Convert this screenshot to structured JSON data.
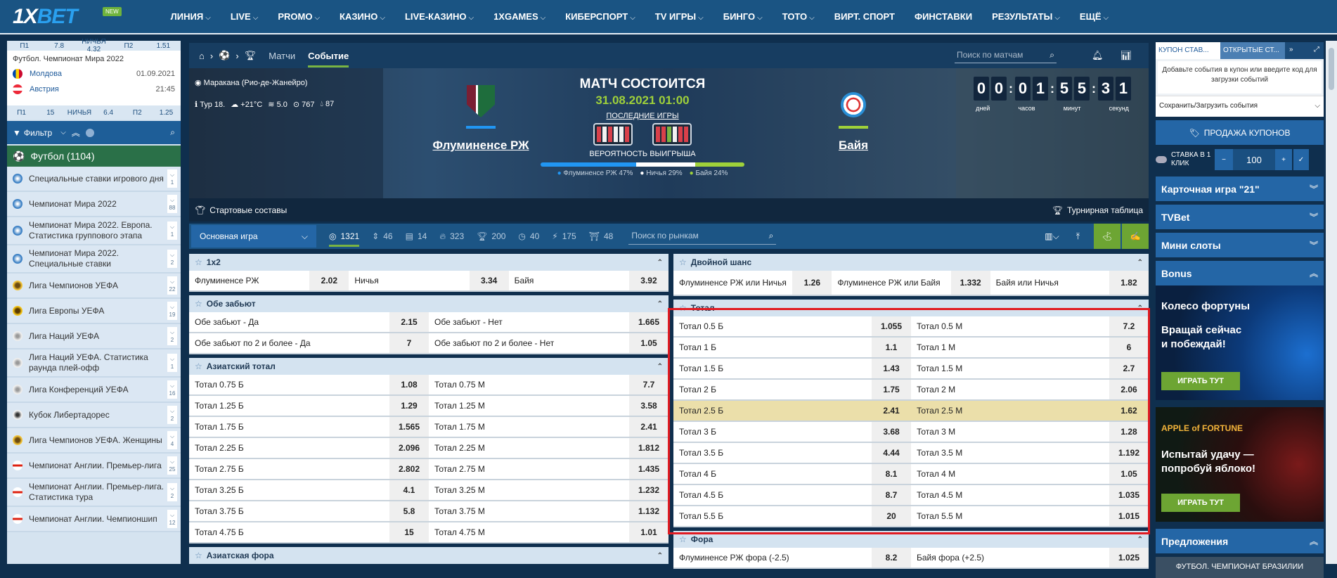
{
  "nav": {
    "logo": "1XBET",
    "new_badge": "NEW",
    "items": [
      {
        "label": "ЛИНИЯ",
        "dd": true
      },
      {
        "label": "LIVE",
        "dd": true
      },
      {
        "label": "PROMO",
        "dd": true
      },
      {
        "label": "КАЗИНО",
        "dd": true
      },
      {
        "label": "LIVE-КАЗИНО",
        "dd": true
      },
      {
        "label": "1XGAMES",
        "dd": true
      },
      {
        "label": "КИБЕРСПОРТ",
        "dd": true
      },
      {
        "label": "TV ИГРЫ",
        "dd": true
      },
      {
        "label": "БИНГО",
        "dd": true
      },
      {
        "label": "ТОТО",
        "dd": true
      },
      {
        "label": "ВИРТ. СПОРТ",
        "dd": false
      },
      {
        "label": "ФИНСТАВКИ",
        "dd": false
      },
      {
        "label": "РЕЗУЛЬТАТЫ",
        "dd": true
      },
      {
        "label": "ЕЩЁ",
        "dd": true
      }
    ]
  },
  "sidebar": {
    "mini_top_odds": {
      "p1": "П1",
      "p1v": "7.8",
      "x": "НИЧЬЯ 4.32",
      "p2": "П2",
      "p2v": "1.51"
    },
    "mini_match": {
      "league": "Футбол. Чемпионат Мира 2022",
      "team1": "Молдова",
      "date": "01.09.2021",
      "team2": "Австрия",
      "time": "21:45"
    },
    "mini_bottom_odds": {
      "p1": "П1",
      "p1v": "15",
      "x": "НИЧЬЯ",
      "xv": "6.4",
      "p2": "П2",
      "p2v": "1.25"
    },
    "filter_label": "Фильтр",
    "sport": "Футбол (1104)",
    "leagues": [
      {
        "name": "Специальные ставки игрового дня",
        "count": "1",
        "icon": "globe"
      },
      {
        "name": "Чемпионат Мира 2022",
        "count": "88",
        "icon": "globe"
      },
      {
        "name": "Чемпионат Мира 2022. Европа. Статистика группового этапа",
        "count": "1",
        "icon": "globe"
      },
      {
        "name": "Чемпионат Мира 2022. Специальные ставки",
        "count": "2",
        "icon": "globe"
      },
      {
        "name": "Лига Чемпионов УЕФА",
        "count": "22",
        "icon": "ucl"
      },
      {
        "name": "Лига Европы УЕФА",
        "count": "19",
        "icon": "uel"
      },
      {
        "name": "Лига Наций УЕФА",
        "count": "2",
        "icon": "unl"
      },
      {
        "name": "Лига Наций УЕФА. Статистика раунда плей-офф",
        "count": "1",
        "icon": "unl"
      },
      {
        "name": "Лига Конференций УЕФА",
        "count": "16",
        "icon": "unl"
      },
      {
        "name": "Кубок Либертадорес",
        "count": "2",
        "icon": "lib"
      },
      {
        "name": "Лига Чемпионов УЕФА. Женщины",
        "count": "4",
        "icon": "ucl"
      },
      {
        "name": "Чемпионат Англии. Премьер-лига",
        "count": "25",
        "icon": "eng"
      },
      {
        "name": "Чемпионат Англии. Премьер-лига. Статистика тура",
        "count": "2",
        "icon": "eng"
      },
      {
        "name": "Чемпионат Англии. Чемпионшип",
        "count": "12",
        "icon": "eng"
      }
    ]
  },
  "crumbs": {
    "matches": "Матчи",
    "event": "Событие",
    "search_placeholder": "Поиск по матчам"
  },
  "hero": {
    "stadium": "Маракана (Рио-де-Жанейро)",
    "round": "Тур 18.",
    "temp": "+21°C",
    "wind": "5.0",
    "pressure": "767",
    "humidity": "87",
    "team1": "Флуминенсе РЖ",
    "team2": "Байя",
    "status": "МАТЧ СОСТОИТСЯ",
    "datetime": "31.08.2021 01:00",
    "last_games": "ПОСЛЕДНИЕ ИГРЫ",
    "form1": [
      "#d9404a",
      "#f2f2f2",
      "#d9404a",
      "#f2f2f2",
      "#f2f2f2",
      "#d9404a"
    ],
    "form2": [
      "#d9404a",
      "#d9404a",
      "#7ab442",
      "#f2f2f2",
      "#d9404a",
      "#d9404a"
    ],
    "prob_title": "ВЕРОЯТНОСТЬ ВЫИГРЫША",
    "prob": [
      {
        "label": "Флуминенсе РЖ 47%",
        "value": 47,
        "color": "#2196f3"
      },
      {
        "label": "Ничья 29%",
        "value": 29,
        "color": "#ffffff"
      },
      {
        "label": "Байя 24%",
        "value": 24,
        "color": "#9fd13a"
      }
    ],
    "countdown": {
      "digits": [
        "0",
        "0",
        "0",
        "1",
        "5",
        "5",
        "3",
        "1"
      ],
      "days": "дней",
      "hours": "часов",
      "minutes": "минут",
      "seconds": "секунд"
    },
    "lineups": "Стартовые составы",
    "standings": "Турнирная таблица"
  },
  "market_filter": {
    "select": "Основная игра",
    "counts": [
      "1321",
      "46",
      "14",
      "323",
      "200",
      "40",
      "175",
      "48"
    ],
    "search_placeholder": "Поиск по рынкам"
  },
  "markets_left": [
    {
      "title": "1x2",
      "rows": [
        [
          [
            "Флуминенсе РЖ",
            "2.02"
          ],
          [
            "Ничья",
            "3.34"
          ],
          [
            "Байя",
            "3.92"
          ]
        ]
      ]
    },
    {
      "title": "Обе забьют",
      "rows": [
        [
          [
            "Обе забьют - Да",
            "2.15"
          ],
          [
            "Обе забьют - Нет",
            "1.665"
          ]
        ],
        [
          [
            "Обе забьют по 2 и более - Да",
            "7"
          ],
          [
            "Обе забьют по 2 и более - Нет",
            "1.05"
          ]
        ]
      ]
    },
    {
      "title": "Азиатский тотал",
      "rows": [
        [
          [
            "Тотал 0.75 Б",
            "1.08"
          ],
          [
            "Тотал 0.75 М",
            "7.7"
          ]
        ],
        [
          [
            "Тотал 1.25 Б",
            "1.29"
          ],
          [
            "Тотал 1.25 М",
            "3.58"
          ]
        ],
        [
          [
            "Тотал 1.75 Б",
            "1.565"
          ],
          [
            "Тотал 1.75 М",
            "2.41"
          ]
        ],
        [
          [
            "Тотал 2.25 Б",
            "2.096"
          ],
          [
            "Тотал 2.25 М",
            "1.812"
          ]
        ],
        [
          [
            "Тотал 2.75 Б",
            "2.802"
          ],
          [
            "Тотал 2.75 М",
            "1.435"
          ]
        ],
        [
          [
            "Тотал 3.25 Б",
            "4.1"
          ],
          [
            "Тотал 3.25 М",
            "1.232"
          ]
        ],
        [
          [
            "Тотал 3.75 Б",
            "5.8"
          ],
          [
            "Тотал 3.75 М",
            "1.132"
          ]
        ],
        [
          [
            "Тотал 4.75 Б",
            "15"
          ],
          [
            "Тотал 4.75 М",
            "1.01"
          ]
        ]
      ]
    },
    {
      "title": "Азиатская фора",
      "rows": []
    }
  ],
  "markets_right": [
    {
      "title": "Двойной шанс",
      "tall": true,
      "rows": [
        [
          [
            "Флуминенсе РЖ или Ничья",
            "1.26"
          ],
          [
            "Флуминенсе РЖ или Байя",
            "1.332"
          ],
          [
            "Байя или Ничья",
            "1.82"
          ]
        ]
      ]
    },
    {
      "title": "Тотал",
      "rows": [
        [
          [
            "Тотал 0.5 Б",
            "1.055"
          ],
          [
            "Тотал 0.5 М",
            "7.2"
          ]
        ],
        [
          [
            "Тотал 1 Б",
            "1.1"
          ],
          [
            "Тотал 1 М",
            "6"
          ]
        ],
        [
          [
            "Тотал 1.5 Б",
            "1.43"
          ],
          [
            "Тотал 1.5 М",
            "2.7"
          ]
        ],
        [
          [
            "Тотал 2 Б",
            "1.75"
          ],
          [
            "Тотал 2 М",
            "2.06"
          ]
        ],
        [
          [
            "Тотал 2.5 Б",
            "2.41"
          ],
          [
            "Тотал 2.5 М",
            "1.62"
          ]
        ],
        [
          [
            "Тотал 3 Б",
            "3.68"
          ],
          [
            "Тотал 3 М",
            "1.28"
          ]
        ],
        [
          [
            "Тотал 3.5 Б",
            "4.44"
          ],
          [
            "Тотал 3.5 М",
            "1.192"
          ]
        ],
        [
          [
            "Тотал 4 Б",
            "8.1"
          ],
          [
            "Тотал 4 М",
            "1.05"
          ]
        ],
        [
          [
            "Тотал 4.5 Б",
            "8.7"
          ],
          [
            "Тотал 4.5 М",
            "1.035"
          ]
        ],
        [
          [
            "Тотал 5.5 Б",
            "20"
          ],
          [
            "Тотал 5.5 М",
            "1.015"
          ]
        ]
      ],
      "highlight_row": 4
    },
    {
      "title": "Фора",
      "rows": [
        [
          [
            "Флуминенсе РЖ фора (-2.5)",
            "8.2"
          ],
          [
            "Байя фора (+2.5)",
            "1.025"
          ]
        ]
      ]
    }
  ],
  "colors": {
    "highlight_box": "#e11b22",
    "highlight_row": "#ebdfaa",
    "accent_green": "#7ab442"
  },
  "coupon": {
    "tab1": "КУПОН СТАВ...",
    "tab2": "ОТКРЫТЫЕ СТ...",
    "info": "Добавьте события в купон или введите код для загрузки событий",
    "save": "Сохранить/Загрузить события",
    "sell": "ПРОДАЖА КУПОНОВ",
    "oneclick": "СТАВКА В 1 КЛИК",
    "stake": "100"
  },
  "right_blocks": {
    "card21": "Карточная игра \"21\"",
    "tvbet": "TVBet",
    "mini": "Мини слоты",
    "bonus": "Bonus",
    "offers": "Предложения",
    "brazil": "ФУТБОЛ. ЧЕМПИОНАТ БРАЗИЛИИ"
  },
  "banners": [
    {
      "title": "Колесо фортуны",
      "text": "Вращай сейчас и побеждай!",
      "button": "ИГРАТЬ ТУТ"
    },
    {
      "title": "APPLE of FORTUNE",
      "text": "Испытай удачу — попробуй яблоко!",
      "button": "ИГРАТЬ ТУТ"
    }
  ]
}
